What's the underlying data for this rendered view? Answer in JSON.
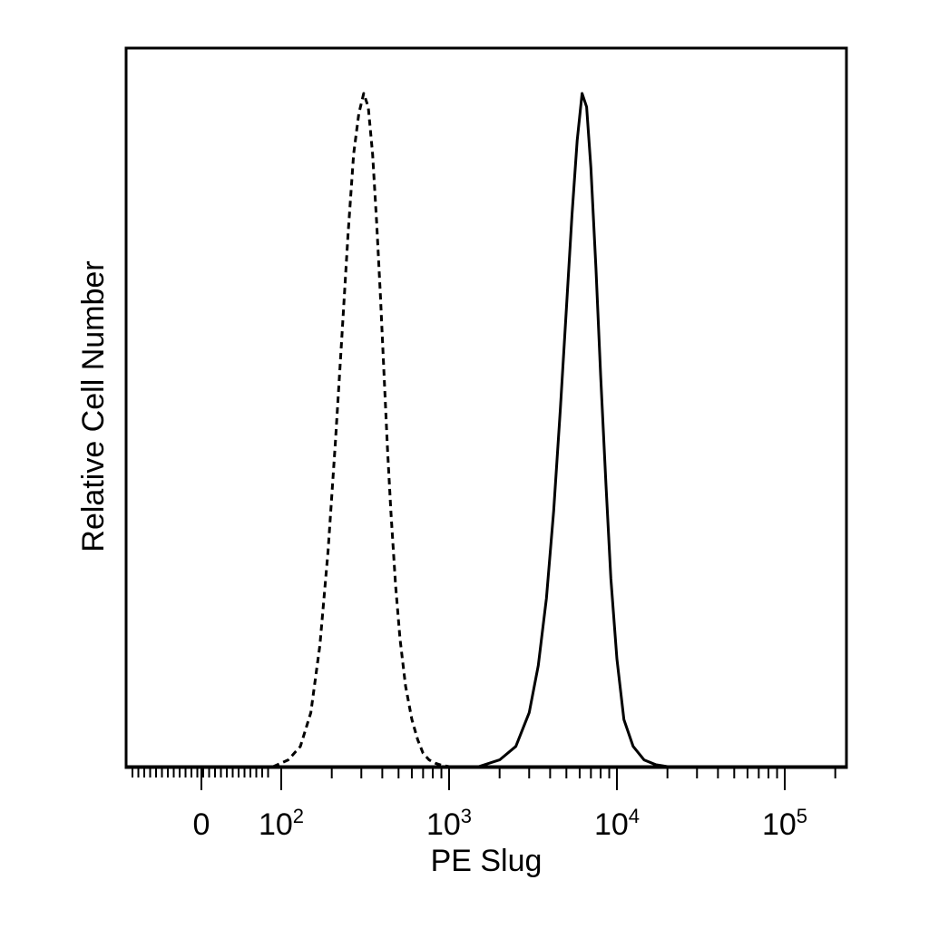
{
  "chart_data": {
    "type": "histogram",
    "title": "",
    "xlabel": "PE Slug",
    "ylabel": "Relative Cell Number",
    "x_scale": "biexponential",
    "x_range": [
      -60,
      250000
    ],
    "y_range": [
      0,
      1
    ],
    "grid": false,
    "legend": "none",
    "tick_labels": [
      {
        "value": 0,
        "base": "0",
        "exp": ""
      },
      {
        "value": 100,
        "base": "10",
        "exp": "2"
      },
      {
        "value": 1000,
        "base": "10",
        "exp": "3"
      },
      {
        "value": 10000,
        "base": "10",
        "exp": "4"
      },
      {
        "value": 100000,
        "base": "10",
        "exp": "5"
      }
    ],
    "series": [
      {
        "style": "dashed",
        "color": "#000000",
        "x": [
          90,
          110,
          130,
          150,
          170,
          190,
          210,
          230,
          250,
          270,
          290,
          310,
          330,
          350,
          370,
          390,
          410,
          430,
          450,
          480,
          510,
          550,
          600,
          650,
          700,
          760,
          830,
          900,
          1000
        ],
        "y": [
          0.0,
          0.01,
          0.03,
          0.08,
          0.18,
          0.32,
          0.48,
          0.64,
          0.79,
          0.91,
          0.97,
          1.0,
          0.98,
          0.91,
          0.81,
          0.7,
          0.58,
          0.47,
          0.38,
          0.27,
          0.19,
          0.12,
          0.07,
          0.04,
          0.02,
          0.01,
          0.005,
          0.002,
          0.0
        ]
      },
      {
        "style": "solid",
        "color": "#000000",
        "x": [
          1500,
          2000,
          2500,
          3000,
          3400,
          3800,
          4200,
          4600,
          5000,
          5400,
          5800,
          6200,
          6600,
          7000,
          7500,
          8000,
          8600,
          9200,
          10000,
          11000,
          12500,
          14500,
          17000,
          20000
        ],
        "y": [
          0.0,
          0.01,
          0.03,
          0.08,
          0.15,
          0.25,
          0.38,
          0.53,
          0.68,
          0.82,
          0.93,
          1.0,
          0.98,
          0.89,
          0.74,
          0.58,
          0.42,
          0.28,
          0.16,
          0.07,
          0.03,
          0.01,
          0.003,
          0.0
        ]
      }
    ]
  }
}
